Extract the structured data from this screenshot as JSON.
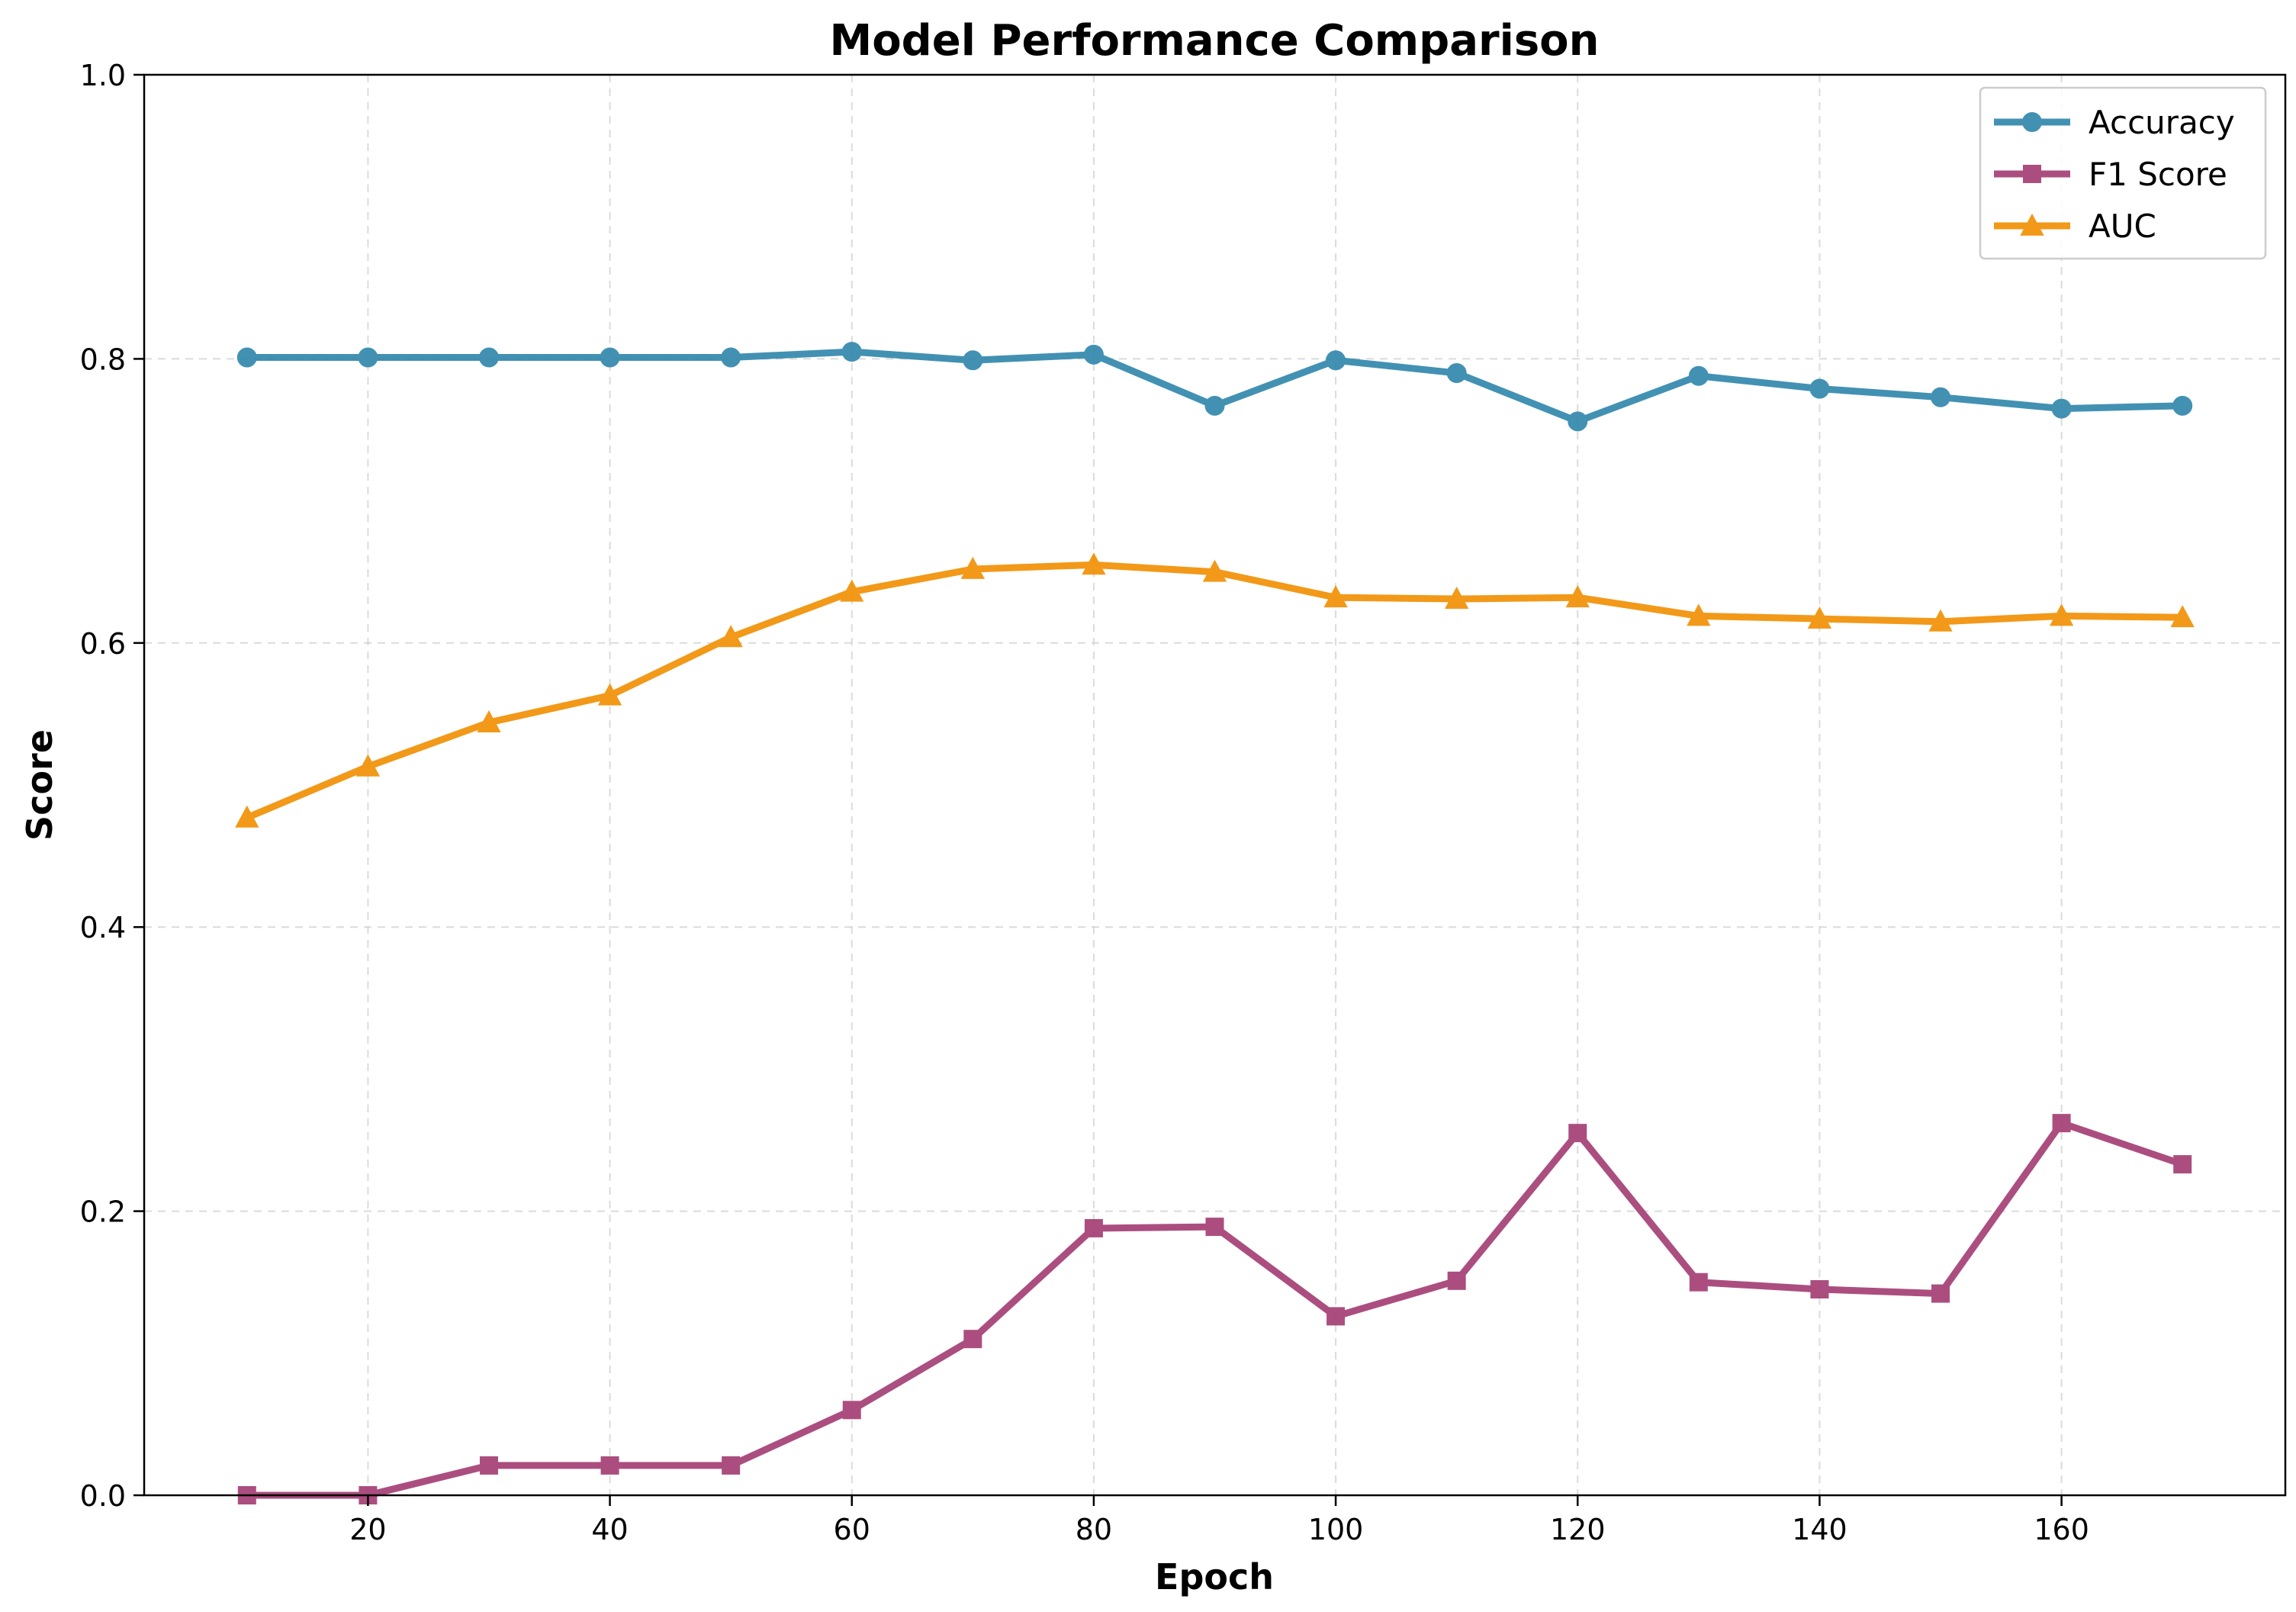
{
  "chart_data": {
    "type": "line",
    "title": "Model Performance Comparison",
    "xlabel": "Epoch",
    "ylabel": "Score",
    "x": [
      10,
      20,
      30,
      40,
      50,
      60,
      70,
      80,
      90,
      100,
      110,
      120,
      130,
      140,
      150,
      160,
      170
    ],
    "xlim": [
      1.5,
      178.5
    ],
    "ylim": [
      0.0,
      1.0
    ],
    "xticks": [
      20,
      40,
      60,
      80,
      100,
      120,
      140,
      160
    ],
    "xtick_labels": [
      "20",
      "40",
      "60",
      "80",
      "100",
      "120",
      "140",
      "160"
    ],
    "yticks": [
      0.0,
      0.2,
      0.4,
      0.6,
      0.8,
      1.0
    ],
    "ytick_labels": [
      "0.0",
      "0.2",
      "0.4",
      "0.6",
      "0.8",
      "1.0"
    ],
    "grid": true,
    "legend_position": "top-right",
    "series": [
      {
        "name": "Accuracy",
        "color": "#2E86AB",
        "marker": "circle",
        "values": [
          0.801,
          0.801,
          0.801,
          0.801,
          0.801,
          0.805,
          0.799,
          0.803,
          0.767,
          0.799,
          0.79,
          0.756,
          0.788,
          0.779,
          0.773,
          0.765,
          0.767
        ]
      },
      {
        "name": "F1 Score",
        "color": "#A23B72",
        "marker": "square",
        "values": [
          0.0,
          0.0,
          0.021,
          0.021,
          0.021,
          0.06,
          0.11,
          0.188,
          0.189,
          0.126,
          0.151,
          0.255,
          0.15,
          0.145,
          0.142,
          0.262,
          0.233
        ]
      },
      {
        "name": "AUC",
        "color": "#F18F01",
        "marker": "triangle",
        "values": [
          0.477,
          0.513,
          0.544,
          0.563,
          0.604,
          0.636,
          0.652,
          0.655,
          0.65,
          0.632,
          0.631,
          0.632,
          0.619,
          0.617,
          0.615,
          0.619,
          0.618
        ]
      }
    ]
  }
}
